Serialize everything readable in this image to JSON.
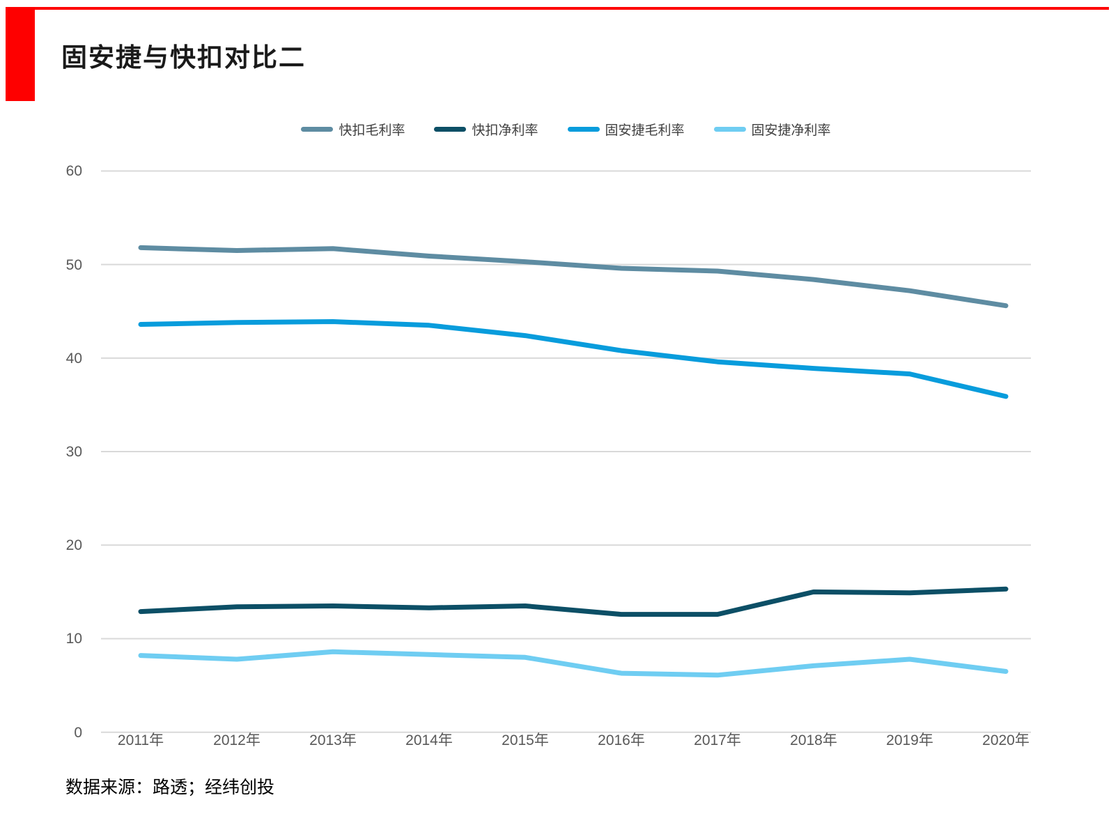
{
  "page": {
    "accent_red": "#FE0000",
    "background": "#FFFFFF"
  },
  "source": {
    "text": "数据来源：路透；经纬创投"
  },
  "chart_data": {
    "type": "line",
    "title": "固安捷与快扣对比二",
    "categories": [
      "2011年",
      "2012年",
      "2013年",
      "2014年",
      "2015年",
      "2016年",
      "2017年",
      "2018年",
      "2019年",
      "2020年"
    ],
    "series": [
      {
        "name": "快扣毛利率",
        "color": "#5E8CA2",
        "values": [
          51.8,
          51.5,
          51.7,
          50.9,
          50.3,
          49.6,
          49.3,
          48.4,
          47.2,
          45.6
        ]
      },
      {
        "name": "快扣净利率",
        "color": "#0C4F66",
        "values": [
          12.9,
          13.4,
          13.5,
          13.3,
          13.5,
          12.6,
          12.6,
          15.0,
          14.9,
          15.3
        ]
      },
      {
        "name": "固安捷毛利率",
        "color": "#089CDC",
        "values": [
          43.6,
          43.8,
          43.9,
          43.5,
          42.4,
          40.8,
          39.6,
          38.9,
          38.3,
          35.9
        ]
      },
      {
        "name": "固安捷净利率",
        "color": "#6FCDF2",
        "values": [
          8.2,
          7.8,
          8.6,
          8.3,
          8.0,
          6.3,
          6.1,
          7.1,
          7.8,
          6.5
        ]
      }
    ],
    "yticks": [
      0,
      10,
      20,
      30,
      40,
      50,
      60
    ],
    "ylim": [
      0,
      60
    ],
    "grid": true,
    "gridline_color": "#D9D9D9",
    "axis_text_color": "#595959",
    "legend_position": "top-center",
    "line_width": 7
  }
}
